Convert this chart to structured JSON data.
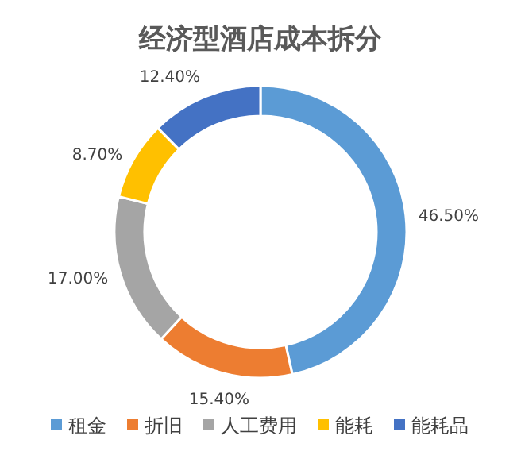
{
  "chart_data": {
    "type": "donut",
    "title": "经济型酒店成本拆分",
    "categories": [
      "租金",
      "折旧",
      "人工费用",
      "能耗",
      "能耗品"
    ],
    "values": [
      46.5,
      15.4,
      17.0,
      8.7,
      12.4
    ],
    "value_labels": [
      "46.50%",
      "15.40%",
      "17.00%",
      "8.70%",
      "12.40%"
    ],
    "colors": [
      "#5b9bd5",
      "#ed7d31",
      "#a5a5a5",
      "#ffc000",
      "#4472c4"
    ],
    "legend": "bottom"
  }
}
